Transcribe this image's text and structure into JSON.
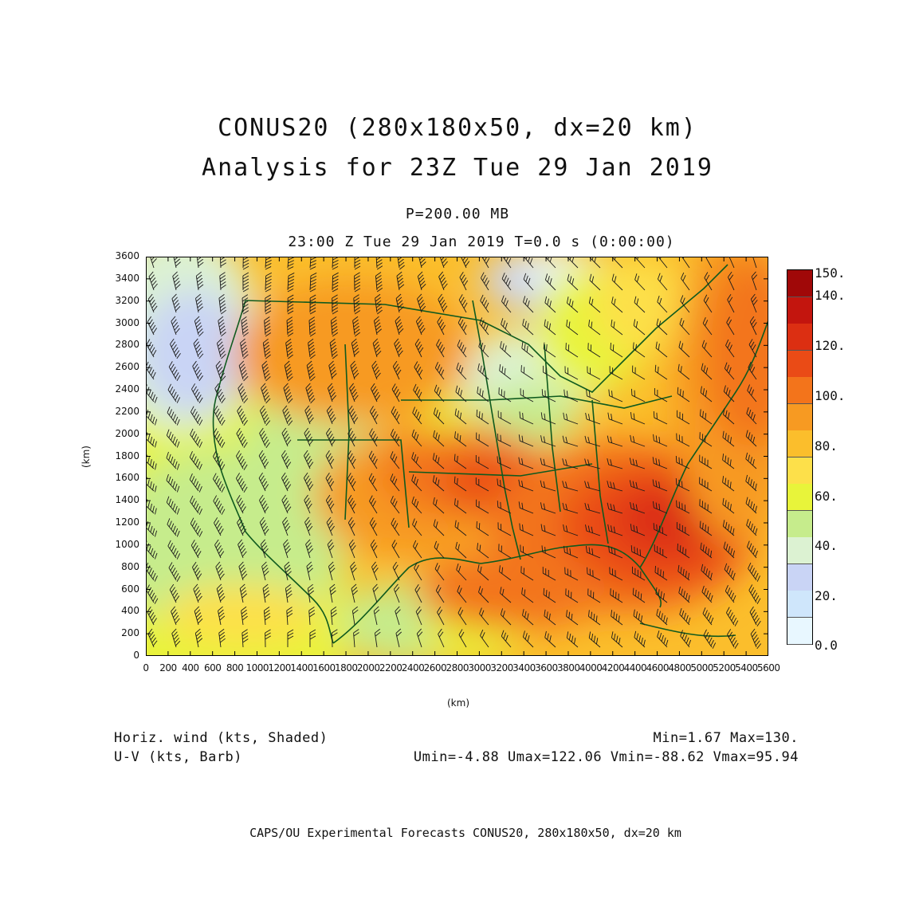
{
  "title": {
    "line1": "CONUS20 (280x180x50, dx=20 km)",
    "line2": "Analysis for 23Z Tue 29 Jan 2019",
    "level": "P=200.00 MB",
    "time": "23:00 Z Tue 29 Jan 2019    T=0.0 s (0:00:00)"
  },
  "map": {
    "x_unit": "(km)",
    "y_unit": "(km)",
    "x_ticks": [
      "0",
      "200",
      "400",
      "600",
      "800",
      "1000",
      "1200",
      "1400",
      "1600",
      "1800",
      "2000",
      "2200",
      "2400",
      "2600",
      "2800",
      "3000",
      "3200",
      "3400",
      "3600",
      "3800",
      "4000",
      "4200",
      "4400",
      "4600",
      "4800",
      "5000",
      "5200",
      "5400",
      "5600"
    ],
    "y_ticks": [
      "0",
      "200",
      "400",
      "600",
      "800",
      "1000",
      "1200",
      "1400",
      "1600",
      "1800",
      "2000",
      "2200",
      "2400",
      "2600",
      "2800",
      "3000",
      "3200",
      "3400",
      "3600"
    ],
    "x_range": [
      0,
      5600
    ],
    "y_range": [
      0,
      3600
    ],
    "colors": {
      "coast": "#0f5a1e",
      "barb": "#1a1a1a"
    }
  },
  "colorbar": {
    "labels": [
      "150.",
      "140.",
      "120.",
      "100.",
      "80.",
      "60.",
      "40.",
      "20.",
      "0.0"
    ],
    "colors": [
      "#e8f7ff",
      "#cfe6fb",
      "#c9d4f5",
      "#dcf2d2",
      "#c6ec8c",
      "#e8f43a",
      "#fde04a",
      "#fbbe2c",
      "#f79a22",
      "#f3741b",
      "#ea4b16",
      "#dc2f12",
      "#c3150e",
      "#a00808"
    ]
  },
  "legend": {
    "left1": "Horiz. wind (kts, Shaded)",
    "left2": "U-V (kts, Barb)",
    "right1": "Min=1.67 Max=130.",
    "right2": "Umin=-4.88 Umax=122.06 Vmin=-88.62 Vmax=95.94"
  },
  "footer": "CAPS/OU Experimental Forecasts  CONUS20, 280x180x50, dx=20 km"
}
